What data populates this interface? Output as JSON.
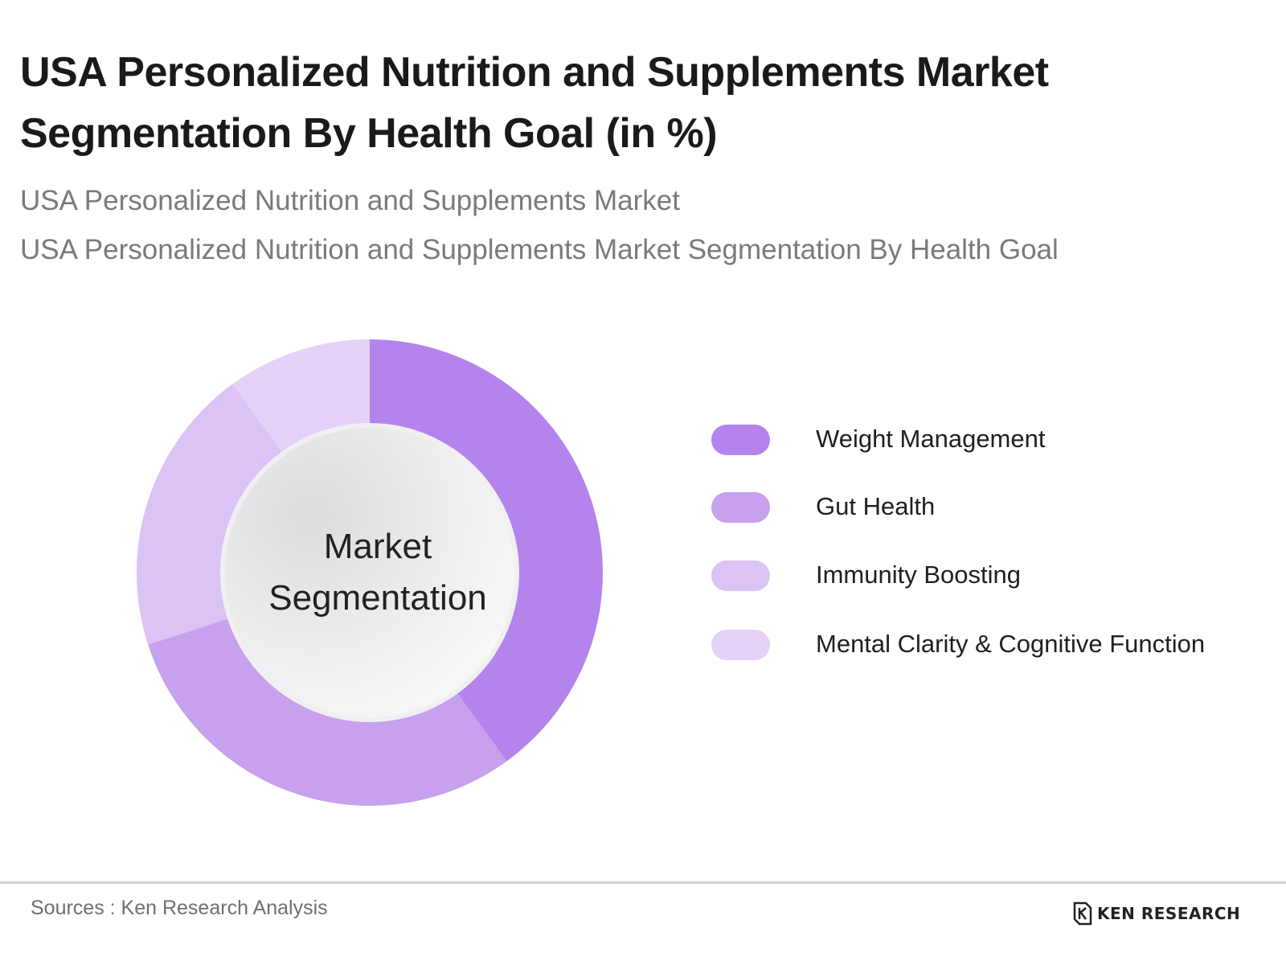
{
  "header": {
    "title_line1": "USA Personalized Nutrition and Supplements Market",
    "title_line2": "Segmentation By Health Goal (in %)",
    "subtitle_line1": "USA Personalized Nutrition and Supplements Market",
    "subtitle_line2": "USA Personalized Nutrition and Supplements Market Segmentation By Health Goal"
  },
  "center_label": {
    "line1": "Market",
    "line2": "Segmentation"
  },
  "chart_data": {
    "type": "pie",
    "title": "USA Personalized Nutrition and Supplements Market Segmentation By Health Goal (in %)",
    "donut": true,
    "categories": [
      "Weight Management",
      "Gut Health",
      "Immunity Boosting",
      "Mental Clarity & Cognitive Function"
    ],
    "values": [
      40,
      30,
      20,
      10
    ],
    "colors": [
      "#b484ec",
      "#c7a0ee",
      "#dbc3f5",
      "#e5d1f8"
    ],
    "legend_position": "right"
  },
  "footer": {
    "source": "Sources : Ken Research Analysis",
    "brand": "KEN RESEARCH"
  }
}
